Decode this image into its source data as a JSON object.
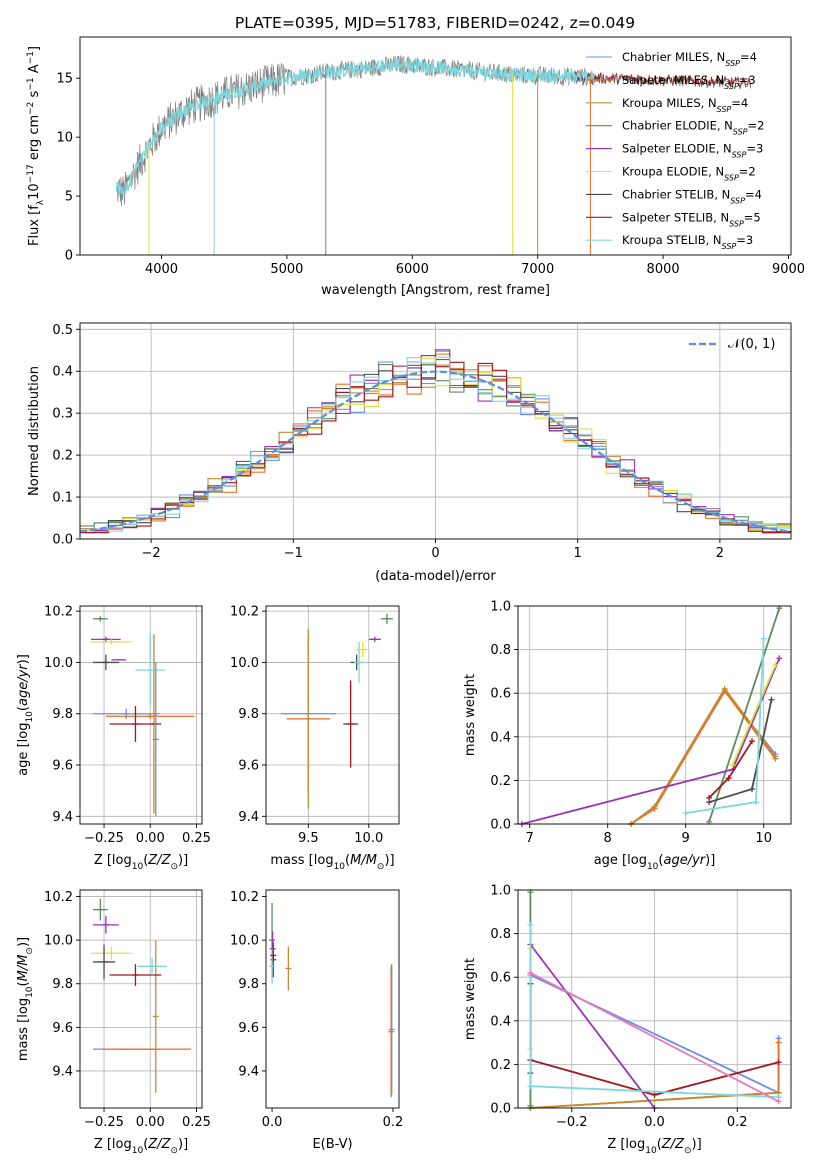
{
  "figure": {
    "title": "PLATE=0395, MJD=51783, FIBERID=0242, z=0.049"
  },
  "models": [
    {
      "name": "Chabrier MILES",
      "nssp": 4,
      "color": "#6c8ee8"
    },
    {
      "name": "Salpeter MILES",
      "nssp": 3,
      "color": "#ee6e22"
    },
    {
      "name": "Kroupa MILES",
      "nssp": 4,
      "color": "#c28b32"
    },
    {
      "name": "Chabrier ELODIE",
      "nssp": 2,
      "color": "#5d8c5f"
    },
    {
      "name": "Salpeter ELODIE",
      "nssp": 3,
      "color": "#9a33b5"
    },
    {
      "name": "Kroupa ELODIE",
      "nssp": 2,
      "color": "#e0e33e"
    },
    {
      "name": "Chabrier STELIB",
      "nssp": 4,
      "color": "#4a4a4a"
    },
    {
      "name": "Salpeter STELIB",
      "nssp": 5,
      "color": "#a8151d"
    },
    {
      "name": "Kroupa STELIB",
      "nssp": 3,
      "color": "#7fd6dd"
    }
  ],
  "legend_label_format": "N_SSP",
  "chart_data": [
    {
      "id": "spectrum",
      "type": "line",
      "xlabel": "wavelength [Angstrom, rest frame]",
      "ylabel": "Flux [f_λ 10^-17 erg cm^-2 s^-1 A^-1]",
      "xlim": [
        3350,
        9020
      ],
      "ylim": [
        0,
        18.5
      ],
      "xticks": [
        4000,
        5000,
        6000,
        7000,
        8000,
        9000
      ],
      "yticks": [
        0,
        5,
        10,
        15
      ],
      "grid": false,
      "legend_position": "right",
      "continuum": {
        "x": [
          3640,
          3700,
          3800,
          3900,
          4000,
          4100,
          4200,
          4300,
          4500,
          4700,
          5000,
          5300,
          5600,
          5900,
          6200,
          6500,
          6800,
          7100,
          7400,
          7700,
          8000,
          8300,
          8600
        ],
        "y": [
          5.6,
          5.3,
          7.3,
          9.2,
          10.8,
          11.6,
          12.4,
          12.8,
          13.6,
          14.2,
          15.0,
          15.5,
          15.8,
          16.2,
          15.9,
          15.6,
          15.3,
          15.2,
          15.1,
          15.0,
          14.9,
          14.8,
          14.7
        ]
      }
    },
    {
      "id": "residuals",
      "type": "histogram",
      "xlabel": "(data-model)/error",
      "ylabel": "Normed distribution",
      "xlim": [
        -2.5,
        2.5
      ],
      "ylim": [
        0,
        0.515
      ],
      "xticks": [
        -2,
        -1,
        0,
        1,
        2
      ],
      "yticks": [
        0.0,
        0.1,
        0.2,
        0.3,
        0.4,
        0.5
      ],
      "grid": true,
      "reference_curve": {
        "label": "𝒩(0, 1)",
        "type": "normal",
        "mean": 0,
        "sigma": 1
      },
      "bin_width": 0.1
    },
    {
      "id": "age_vs_Z",
      "type": "scatter",
      "xlabel": "Z [log10(Z/Z⊙)]",
      "ylabel": "age  [log10(age/yr)]",
      "xlim": [
        -0.38,
        0.28
      ],
      "ylim": [
        9.37,
        10.22
      ],
      "xticks": [
        -0.25,
        0.0,
        0.25
      ],
      "yticks": [
        9.4,
        9.6,
        9.8,
        10.0,
        10.2
      ],
      "xtick_labels": [
        "−0.25",
        "0.00",
        "0.25"
      ],
      "grid": true,
      "points": [
        {
          "m": 0,
          "x": -0.13,
          "y": 9.8,
          "xerr": 0.18,
          "yerr": 0.02
        },
        {
          "m": 1,
          "x": 0.0,
          "y": 9.79,
          "xerr": 0.24,
          "yerr": 0.01
        },
        {
          "m": 2,
          "x": 0.02,
          "y": 9.76,
          "xerr": 0.02,
          "yerr": 0.35
        },
        {
          "m": 3,
          "x": -0.27,
          "y": 10.17,
          "xerr": 0.04,
          "yerr": 0.01
        },
        {
          "m": 4,
          "x": -0.24,
          "y": 10.09,
          "xerr": 0.08,
          "yerr": 0.01
        },
        {
          "m": 5,
          "x": -0.21,
          "y": 10.08,
          "xerr": 0.11,
          "yerr": 0.01
        },
        {
          "m": 6,
          "x": -0.24,
          "y": 10.0,
          "xerr": 0.07,
          "yerr": 0.03
        },
        {
          "m": 7,
          "x": -0.08,
          "y": 9.76,
          "xerr": 0.14,
          "yerr": 0.07
        },
        {
          "m": 8,
          "x": 0.0,
          "y": 9.97,
          "xerr": 0.08,
          "yerr": 0.14
        },
        {
          "m": 0,
          "x": 0.03,
          "y": 9.7,
          "xerr": 0.0,
          "yerr": 0.3
        },
        {
          "m": 4,
          "x": -0.17,
          "y": 10.01,
          "xerr": 0.04,
          "yerr": 0.0
        }
      ]
    },
    {
      "id": "age_vs_mass",
      "type": "scatter",
      "xlabel": "mass [log10(M/M⊙)]",
      "ylabel": "",
      "xlim": [
        9.15,
        10.25
      ],
      "ylim": [
        9.37,
        10.22
      ],
      "xticks": [
        9.5,
        10.0
      ],
      "yticks": [
        9.4,
        9.6,
        9.8,
        10.0,
        10.2
      ],
      "grid": true,
      "points": [
        {
          "m": 0,
          "x": 9.5,
          "y": 9.8,
          "xerr": 0.23,
          "yerr": 0.3
        },
        {
          "m": 1,
          "x": 9.5,
          "y": 9.78,
          "xerr": 0.18,
          "yerr": 0.3
        },
        {
          "m": 2,
          "x": 9.5,
          "y": 9.78,
          "xerr": 0.0,
          "yerr": 0.35
        },
        {
          "m": 3,
          "x": 10.15,
          "y": 10.17,
          "xerr": 0.05,
          "yerr": 0.02
        },
        {
          "m": 4,
          "x": 10.05,
          "y": 10.09,
          "xerr": 0.05,
          "yerr": 0.01
        },
        {
          "m": 5,
          "x": 9.95,
          "y": 10.05,
          "xerr": 0.06,
          "yerr": 0.03
        },
        {
          "m": 6,
          "x": 9.9,
          "y": 10.0,
          "xerr": 0.05,
          "yerr": 0.03
        },
        {
          "m": 7,
          "x": 9.85,
          "y": 9.76,
          "xerr": 0.06,
          "yerr": 0.17
        },
        {
          "m": 8,
          "x": 9.92,
          "y": 10.0,
          "xerr": 0.04,
          "yerr": 0.08
        }
      ]
    },
    {
      "id": "massweight_vs_age",
      "type": "line",
      "xlabel": "age  [log10(age/yr)]",
      "ylabel": "mass weight",
      "xlim": [
        6.85,
        10.35
      ],
      "ylim": [
        0,
        1.0
      ],
      "xticks": [
        7,
        8,
        9,
        10
      ],
      "yticks": [
        0.0,
        0.2,
        0.4,
        0.6,
        0.8,
        1.0
      ],
      "grid": true,
      "series": [
        {
          "m": 0,
          "x": [
            8.3,
            8.6,
            9.5,
            10.15
          ],
          "y": [
            0.0,
            0.08,
            0.61,
            0.32
          ]
        },
        {
          "m": 1,
          "x": [
            8.3,
            8.6,
            9.5,
            10.15
          ],
          "y": [
            0.0,
            0.07,
            0.61,
            0.3
          ]
        },
        {
          "m": 2,
          "x": [
            8.3,
            8.6,
            9.5,
            10.15
          ],
          "y": [
            0.0,
            0.08,
            0.62,
            0.31
          ]
        },
        {
          "m": 3,
          "x": [
            9.3,
            10.2
          ],
          "y": [
            0.01,
            0.99
          ]
        },
        {
          "m": 4,
          "x": [
            6.9,
            9.6,
            10.2
          ],
          "y": [
            0.0,
            0.25,
            0.76
          ]
        },
        {
          "m": 5,
          "x": [
            9.6,
            10.15
          ],
          "y": [
            0.27,
            0.73
          ]
        },
        {
          "m": 6,
          "x": [
            9.3,
            9.85,
            10.1
          ],
          "y": [
            0.1,
            0.16,
            0.57
          ]
        },
        {
          "m": 7,
          "x": [
            9.3,
            9.55,
            9.85
          ],
          "y": [
            0.12,
            0.21,
            0.38
          ]
        },
        {
          "m": 8,
          "x": [
            9.0,
            9.9,
            10.0
          ],
          "y": [
            0.05,
            0.1,
            0.85
          ]
        }
      ]
    },
    {
      "id": "mass_vs_Z",
      "type": "scatter",
      "xlabel": "Z [log10(Z/Z⊙)]",
      "ylabel": "mass [log10(M/M⊙)]",
      "xlim": [
        -0.38,
        0.28
      ],
      "ylim": [
        9.23,
        10.23
      ],
      "xticks": [
        -0.25,
        0.0,
        0.25
      ],
      "yticks": [
        9.4,
        9.6,
        9.8,
        10.0,
        10.2
      ],
      "xtick_labels": [
        "−0.25",
        "0.00",
        "0.25"
      ],
      "grid": true,
      "points": [
        {
          "m": 0,
          "x": -0.13,
          "y": 9.5,
          "xerr": 0.18,
          "yerr": 0.0
        },
        {
          "m": 1,
          "x": -0.02,
          "y": 9.5,
          "xerr": 0.24,
          "yerr": 0.0
        },
        {
          "m": 2,
          "x": 0.03,
          "y": 9.65,
          "xerr": 0.0,
          "yerr": 0.35
        },
        {
          "m": 3,
          "x": -0.27,
          "y": 10.14,
          "xerr": 0.04,
          "yerr": 0.05
        },
        {
          "m": 4,
          "x": -0.24,
          "y": 10.07,
          "xerr": 0.07,
          "yerr": 0.04
        },
        {
          "m": 5,
          "x": -0.21,
          "y": 9.94,
          "xerr": 0.11,
          "yerr": 0.03
        },
        {
          "m": 6,
          "x": -0.25,
          "y": 9.9,
          "xerr": 0.06,
          "yerr": 0.08
        },
        {
          "m": 7,
          "x": -0.08,
          "y": 9.84,
          "xerr": 0.14,
          "yerr": 0.05
        },
        {
          "m": 8,
          "x": 0.01,
          "y": 9.88,
          "xerr": 0.08,
          "yerr": 0.04
        }
      ]
    },
    {
      "id": "mass_vs_ebv",
      "type": "scatter",
      "xlabel": "E(B-V)",
      "ylabel": "",
      "xlim": [
        -0.01,
        0.21
      ],
      "ylim": [
        9.23,
        10.23
      ],
      "xticks": [
        0.0,
        0.2
      ],
      "yticks": [
        9.4,
        9.6,
        9.8,
        10.0,
        10.2
      ],
      "grid": false,
      "points": [
        {
          "m": 0,
          "x": 0.198,
          "y": 9.59,
          "xerr": 0,
          "yerr": 0.3
        },
        {
          "m": 1,
          "x": 0.197,
          "y": 9.58,
          "xerr": 0,
          "yerr": 0.3
        },
        {
          "m": 3,
          "x": 0.0,
          "y": 10.0,
          "xerr": 0,
          "yerr": 0.17
        },
        {
          "m": 4,
          "x": 0.001,
          "y": 9.96,
          "xerr": 0,
          "yerr": 0.08
        },
        {
          "m": 6,
          "x": 0.002,
          "y": 9.91,
          "xerr": 0,
          "yerr": 0.08
        },
        {
          "m": 8,
          "x": 0.0,
          "y": 9.88,
          "xerr": 0,
          "yerr": 0.08
        },
        {
          "m": 7,
          "x": 0.002,
          "y": 9.93,
          "xerr": 0,
          "yerr": 0.03
        },
        {
          "m": 2,
          "x": 0.027,
          "y": 9.87,
          "xerr": 0,
          "yerr": 0.1
        }
      ]
    },
    {
      "id": "massweight_vs_Z",
      "type": "line",
      "xlabel": "Z [log10(Z/Z⊙)]",
      "ylabel": "mass weight",
      "xlim": [
        -0.33,
        0.33
      ],
      "ylim": [
        0,
        1.0
      ],
      "xticks": [
        -0.2,
        0.0,
        0.2
      ],
      "yticks": [
        0.0,
        0.2,
        0.4,
        0.6,
        0.8,
        1.0
      ],
      "xtick_labels": [
        "−0.2",
        "0.0",
        "0.2"
      ],
      "grid": true,
      "series": [
        {
          "m": 0,
          "x": [
            -0.3,
            -0.3,
            0.3,
            0.3
          ],
          "y": [
            0.0,
            0.61,
            0.07,
            0.32
          ]
        },
        {
          "m": 1,
          "x": [
            -0.3,
            0.3,
            0.3
          ],
          "y": [
            0.0,
            0.07,
            0.3
          ]
        },
        {
          "m": 2,
          "x": [
            -0.3,
            0.3
          ],
          "y": [
            0.0,
            0.07
          ]
        },
        {
          "m": 3,
          "x": [
            -0.3,
            -0.3
          ],
          "y": [
            0.01,
            0.99
          ]
        },
        {
          "m": 4,
          "x": [
            -0.3,
            0.0
          ],
          "y": [
            0.75,
            0.0
          ]
        },
        {
          "m": 5,
          "x": [
            -0.3,
            -0.3
          ],
          "y": [
            0.27,
            0.73
          ]
        },
        {
          "m": 6,
          "x": [
            -0.3,
            -0.3
          ],
          "y": [
            0.16,
            0.57
          ]
        },
        {
          "m": 7,
          "x": [
            -0.3,
            0.0,
            0.3
          ],
          "y": [
            0.22,
            0.06,
            0.21
          ]
        },
        {
          "m": 8,
          "x": [
            -0.3,
            -0.3,
            0.3
          ],
          "y": [
            0.84,
            0.1,
            0.05
          ]
        },
        {
          "m": 9,
          "x": [
            -0.3,
            0.3
          ],
          "y": [
            0.62,
            0.03
          ]
        }
      ]
    }
  ],
  "extra_colors": {
    "pink": "#e87ab5"
  }
}
